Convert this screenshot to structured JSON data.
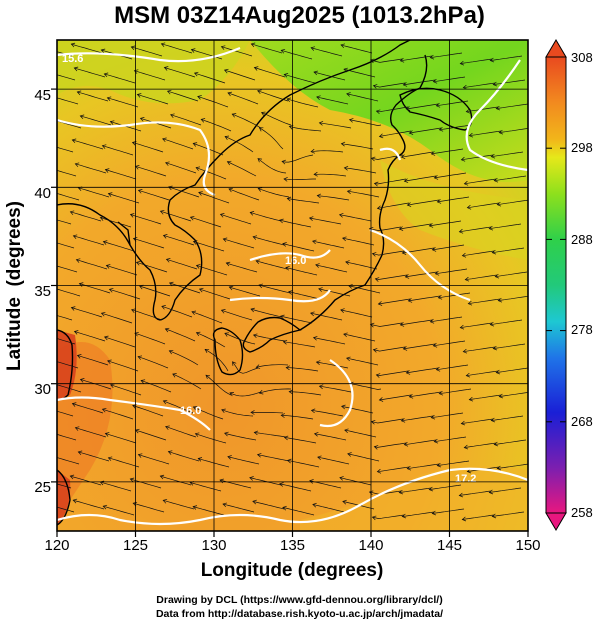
{
  "title": "MSM 03Z14Aug2025 (1013.2hPa)",
  "map": {
    "xlabel": "Longitude (degrees)",
    "ylabel": "Latitude  (degrees)",
    "lon_range": [
      120,
      150
    ],
    "lat_range": [
      22.5,
      47.5
    ],
    "lon_ticks": [
      "120",
      "125",
      "130",
      "135",
      "140",
      "145",
      "150"
    ],
    "lat_ticks": [
      "25",
      "30",
      "35",
      "40",
      "45"
    ]
  },
  "colorbar": {
    "range": [
      258,
      308
    ],
    "labels": [
      "308",
      "298",
      "288",
      "278",
      "268",
      "258"
    ],
    "colors": [
      "#e8177f",
      "#7b1fb0",
      "#1a1fd6",
      "#1f74e8",
      "#1ec8d2",
      "#22c97a",
      "#2fd04a",
      "#8ee01c",
      "#e6e81a",
      "#f2b51a",
      "#f28a1f",
      "#e94a1f"
    ]
  },
  "contours": {
    "labels": [
      "15.6",
      "16.0",
      "17.2",
      "16.0"
    ]
  },
  "footer": {
    "line1": "Drawing by DCL (https://www.gfd-dennou.org/library/dcl/)",
    "line2": "Data from http://database.rish.kyoto-u.ac.jp/arch/jmadata/"
  }
}
